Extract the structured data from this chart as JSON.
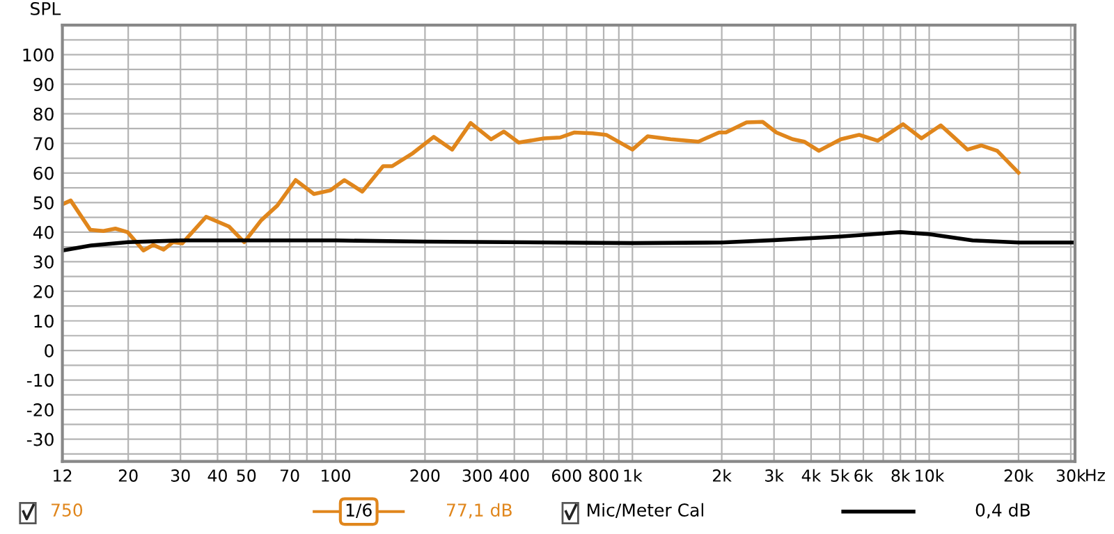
{
  "chart_data": {
    "type": "line",
    "ylabel": "SPL",
    "xlim": [
      12,
      31000
    ],
    "ylim": [
      -37.5,
      110
    ],
    "log": "x",
    "grid": true,
    "legend": "bottom",
    "line_style": "solid",
    "marker": "none",
    "xticks": [
      12,
      20,
      30,
      40,
      50,
      {
        "value": 60,
        "label": null
      },
      70,
      {
        "value": 80,
        "label": null
      },
      {
        "value": 90,
        "label": null
      },
      100,
      200,
      300,
      400,
      {
        "value": 500,
        "label": null
      },
      600,
      {
        "value": 700,
        "label": null
      },
      800,
      {
        "value": 900,
        "label": null
      },
      {
        "value": 1000,
        "label": "1k"
      },
      {
        "value": 2000,
        "label": "2k"
      },
      {
        "value": 3000,
        "label": "3k"
      },
      {
        "value": 4000,
        "label": "4k"
      },
      {
        "value": 5000,
        "label": "5k"
      },
      {
        "value": 6000,
        "label": "6k"
      },
      {
        "value": 7000,
        "label": null
      },
      {
        "value": 8000,
        "label": "8k"
      },
      {
        "value": 9000,
        "label": null
      },
      {
        "value": 10000,
        "label": "10k"
      },
      {
        "value": 20000,
        "label": "20k"
      },
      {
        "value": 30000,
        "label": "30k"
      }
    ],
    "xlabel": "Hz",
    "yticks": [
      {
        "value": -35,
        "label": null
      },
      -30,
      {
        "value": -25,
        "label": null
      },
      -20,
      {
        "value": -15,
        "label": null
      },
      -10,
      {
        "value": -5,
        "label": null
      },
      0,
      {
        "value": 5,
        "label": null
      },
      10,
      {
        "value": 15,
        "label": null
      },
      20,
      {
        "value": 25,
        "label": null
      },
      30,
      {
        "value": 35,
        "label": null
      },
      40,
      {
        "value": 45,
        "label": null
      },
      50,
      {
        "value": 55,
        "label": null
      },
      60,
      {
        "value": 65,
        "label": null
      },
      70,
      {
        "value": 75,
        "label": null
      },
      80,
      {
        "value": 85,
        "label": null
      },
      90,
      {
        "value": 95,
        "label": null
      },
      100,
      {
        "value": 105,
        "label": null
      }
    ],
    "series": [
      {
        "name": "750",
        "color": "#e0861c",
        "x": [
          12,
          12.8,
          14.9,
          16.5,
          18.1,
          19.9,
          22.5,
          24.3,
          26.3,
          28.3,
          30.4,
          36.6,
          43.7,
          49.2,
          56.1,
          63.6,
          73.3,
          84.5,
          95.8,
          107,
          123,
          144.5,
          155,
          182,
          214,
          247,
          285,
          334,
          369,
          414,
          504,
          571,
          636,
          733,
          816,
          1000,
          1125,
          1345,
          1668,
          1959,
          2065,
          2425,
          2747,
          3055,
          3467,
          3790,
          4249,
          5040,
          5809,
          6708,
          8166,
          9418,
          10940,
          12080,
          13460,
          14970,
          16950,
          20000
        ],
        "values": [
          49.4,
          50.7,
          40.8,
          40.4,
          41.2,
          40,
          33.8,
          35.7,
          34.1,
          36.6,
          36.2,
          45.2,
          41.9,
          36.6,
          44,
          49,
          57.6,
          52.9,
          54.1,
          57.6,
          53.7,
          62.3,
          62.3,
          66.7,
          72.2,
          67.9,
          76.9,
          71.4,
          74,
          70.3,
          71.7,
          72,
          73.7,
          73.4,
          72.9,
          67.9,
          72.4,
          71.4,
          70.6,
          73.7,
          73.7,
          77.1,
          77.3,
          73.7,
          71.4,
          70.6,
          67.5,
          71.4,
          72.9,
          70.9,
          76.5,
          71.7,
          76.1,
          72.2,
          67.9,
          69.3,
          67.5,
          60.1
        ]
      },
      {
        "name": "Mic/Meter Cal",
        "color": "#000000",
        "x": [
          12,
          15,
          20,
          30,
          100,
          200,
          1000,
          2000,
          3000,
          5000,
          8000,
          10000,
          14000,
          20000,
          31000
        ],
        "values": [
          33.8,
          35.5,
          36.6,
          37.2,
          37.2,
          36.8,
          36.3,
          36.5,
          37.3,
          38.5,
          40,
          39.3,
          37.2,
          36.5,
          36.5
        ]
      }
    ],
    "annotations": [
      "1/6",
      "77,1 dB",
      "0,4 dB"
    ]
  }
}
